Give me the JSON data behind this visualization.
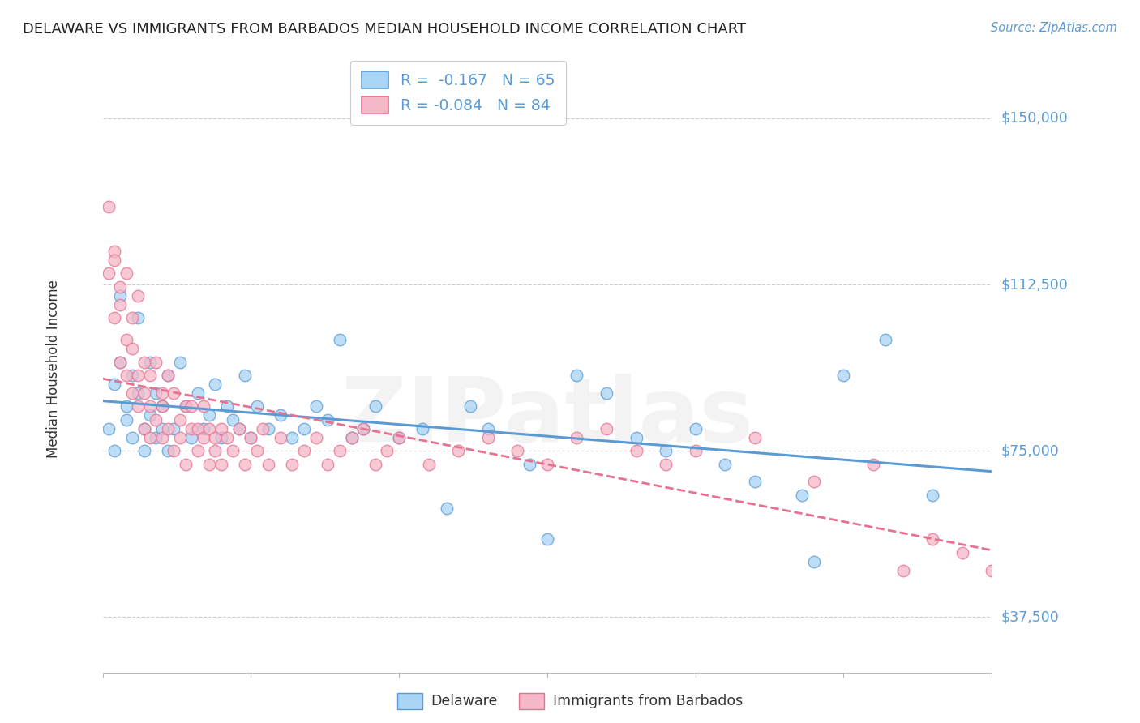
{
  "title": "DELAWARE VS IMMIGRANTS FROM BARBADOS MEDIAN HOUSEHOLD INCOME CORRELATION CHART",
  "source": "Source: ZipAtlas.com",
  "ylabel": "Median Household Income",
  "yticks": [
    37500,
    75000,
    112500,
    150000
  ],
  "ytick_labels": [
    "$37,500",
    "$75,000",
    "$112,500",
    "$150,000"
  ],
  "xmin": 0.0,
  "xmax": 0.15,
  "ymin": 25000,
  "ymax": 162000,
  "watermark": "ZIPatlas",
  "color_delaware": "#a8d4f5",
  "color_barbados": "#f5b8c8",
  "line_color_delaware": "#5b9bd5",
  "line_color_barbados": "#e87090",
  "legend_label1": "R =  -0.167   N = 65",
  "legend_label2": "R = -0.084   N = 84",
  "delaware_x": [
    0.001,
    0.002,
    0.002,
    0.003,
    0.003,
    0.004,
    0.004,
    0.005,
    0.005,
    0.006,
    0.006,
    0.007,
    0.007,
    0.008,
    0.008,
    0.009,
    0.009,
    0.01,
    0.01,
    0.011,
    0.011,
    0.012,
    0.013,
    0.014,
    0.015,
    0.016,
    0.017,
    0.018,
    0.019,
    0.02,
    0.021,
    0.022,
    0.023,
    0.024,
    0.025,
    0.026,
    0.028,
    0.03,
    0.032,
    0.034,
    0.036,
    0.038,
    0.04,
    0.042,
    0.044,
    0.046,
    0.05,
    0.054,
    0.058,
    0.062,
    0.065,
    0.072,
    0.075,
    0.08,
    0.085,
    0.09,
    0.095,
    0.1,
    0.105,
    0.11,
    0.118,
    0.12,
    0.125,
    0.132,
    0.14
  ],
  "delaware_y": [
    80000,
    90000,
    75000,
    110000,
    95000,
    85000,
    82000,
    92000,
    78000,
    88000,
    105000,
    80000,
    75000,
    95000,
    83000,
    78000,
    88000,
    80000,
    85000,
    92000,
    75000,
    80000,
    95000,
    85000,
    78000,
    88000,
    80000,
    83000,
    90000,
    78000,
    85000,
    82000,
    80000,
    92000,
    78000,
    85000,
    80000,
    83000,
    78000,
    80000,
    85000,
    82000,
    100000,
    78000,
    80000,
    85000,
    78000,
    80000,
    62000,
    85000,
    80000,
    72000,
    55000,
    92000,
    88000,
    78000,
    75000,
    80000,
    72000,
    68000,
    65000,
    50000,
    92000,
    100000,
    65000
  ],
  "barbados_x": [
    0.001,
    0.001,
    0.002,
    0.002,
    0.002,
    0.003,
    0.003,
    0.003,
    0.004,
    0.004,
    0.004,
    0.005,
    0.005,
    0.005,
    0.006,
    0.006,
    0.006,
    0.007,
    0.007,
    0.007,
    0.008,
    0.008,
    0.008,
    0.009,
    0.009,
    0.01,
    0.01,
    0.01,
    0.011,
    0.011,
    0.012,
    0.012,
    0.013,
    0.013,
    0.014,
    0.014,
    0.015,
    0.015,
    0.016,
    0.016,
    0.017,
    0.017,
    0.018,
    0.018,
    0.019,
    0.019,
    0.02,
    0.02,
    0.021,
    0.022,
    0.023,
    0.024,
    0.025,
    0.026,
    0.027,
    0.028,
    0.03,
    0.032,
    0.034,
    0.036,
    0.038,
    0.04,
    0.042,
    0.044,
    0.046,
    0.048,
    0.05,
    0.055,
    0.06,
    0.065,
    0.07,
    0.075,
    0.08,
    0.085,
    0.09,
    0.095,
    0.1,
    0.11,
    0.12,
    0.13,
    0.135,
    0.14,
    0.145,
    0.15
  ],
  "barbados_y": [
    130000,
    115000,
    120000,
    105000,
    118000,
    112000,
    95000,
    108000,
    100000,
    92000,
    115000,
    98000,
    88000,
    105000,
    92000,
    85000,
    110000,
    88000,
    95000,
    80000,
    92000,
    85000,
    78000,
    95000,
    82000,
    88000,
    78000,
    85000,
    80000,
    92000,
    75000,
    88000,
    82000,
    78000,
    85000,
    72000,
    80000,
    85000,
    75000,
    80000,
    78000,
    85000,
    72000,
    80000,
    75000,
    78000,
    72000,
    80000,
    78000,
    75000,
    80000,
    72000,
    78000,
    75000,
    80000,
    72000,
    78000,
    72000,
    75000,
    78000,
    72000,
    75000,
    78000,
    80000,
    72000,
    75000,
    78000,
    72000,
    75000,
    78000,
    75000,
    72000,
    78000,
    80000,
    75000,
    72000,
    75000,
    78000,
    68000,
    72000,
    48000,
    55000,
    52000,
    48000
  ]
}
